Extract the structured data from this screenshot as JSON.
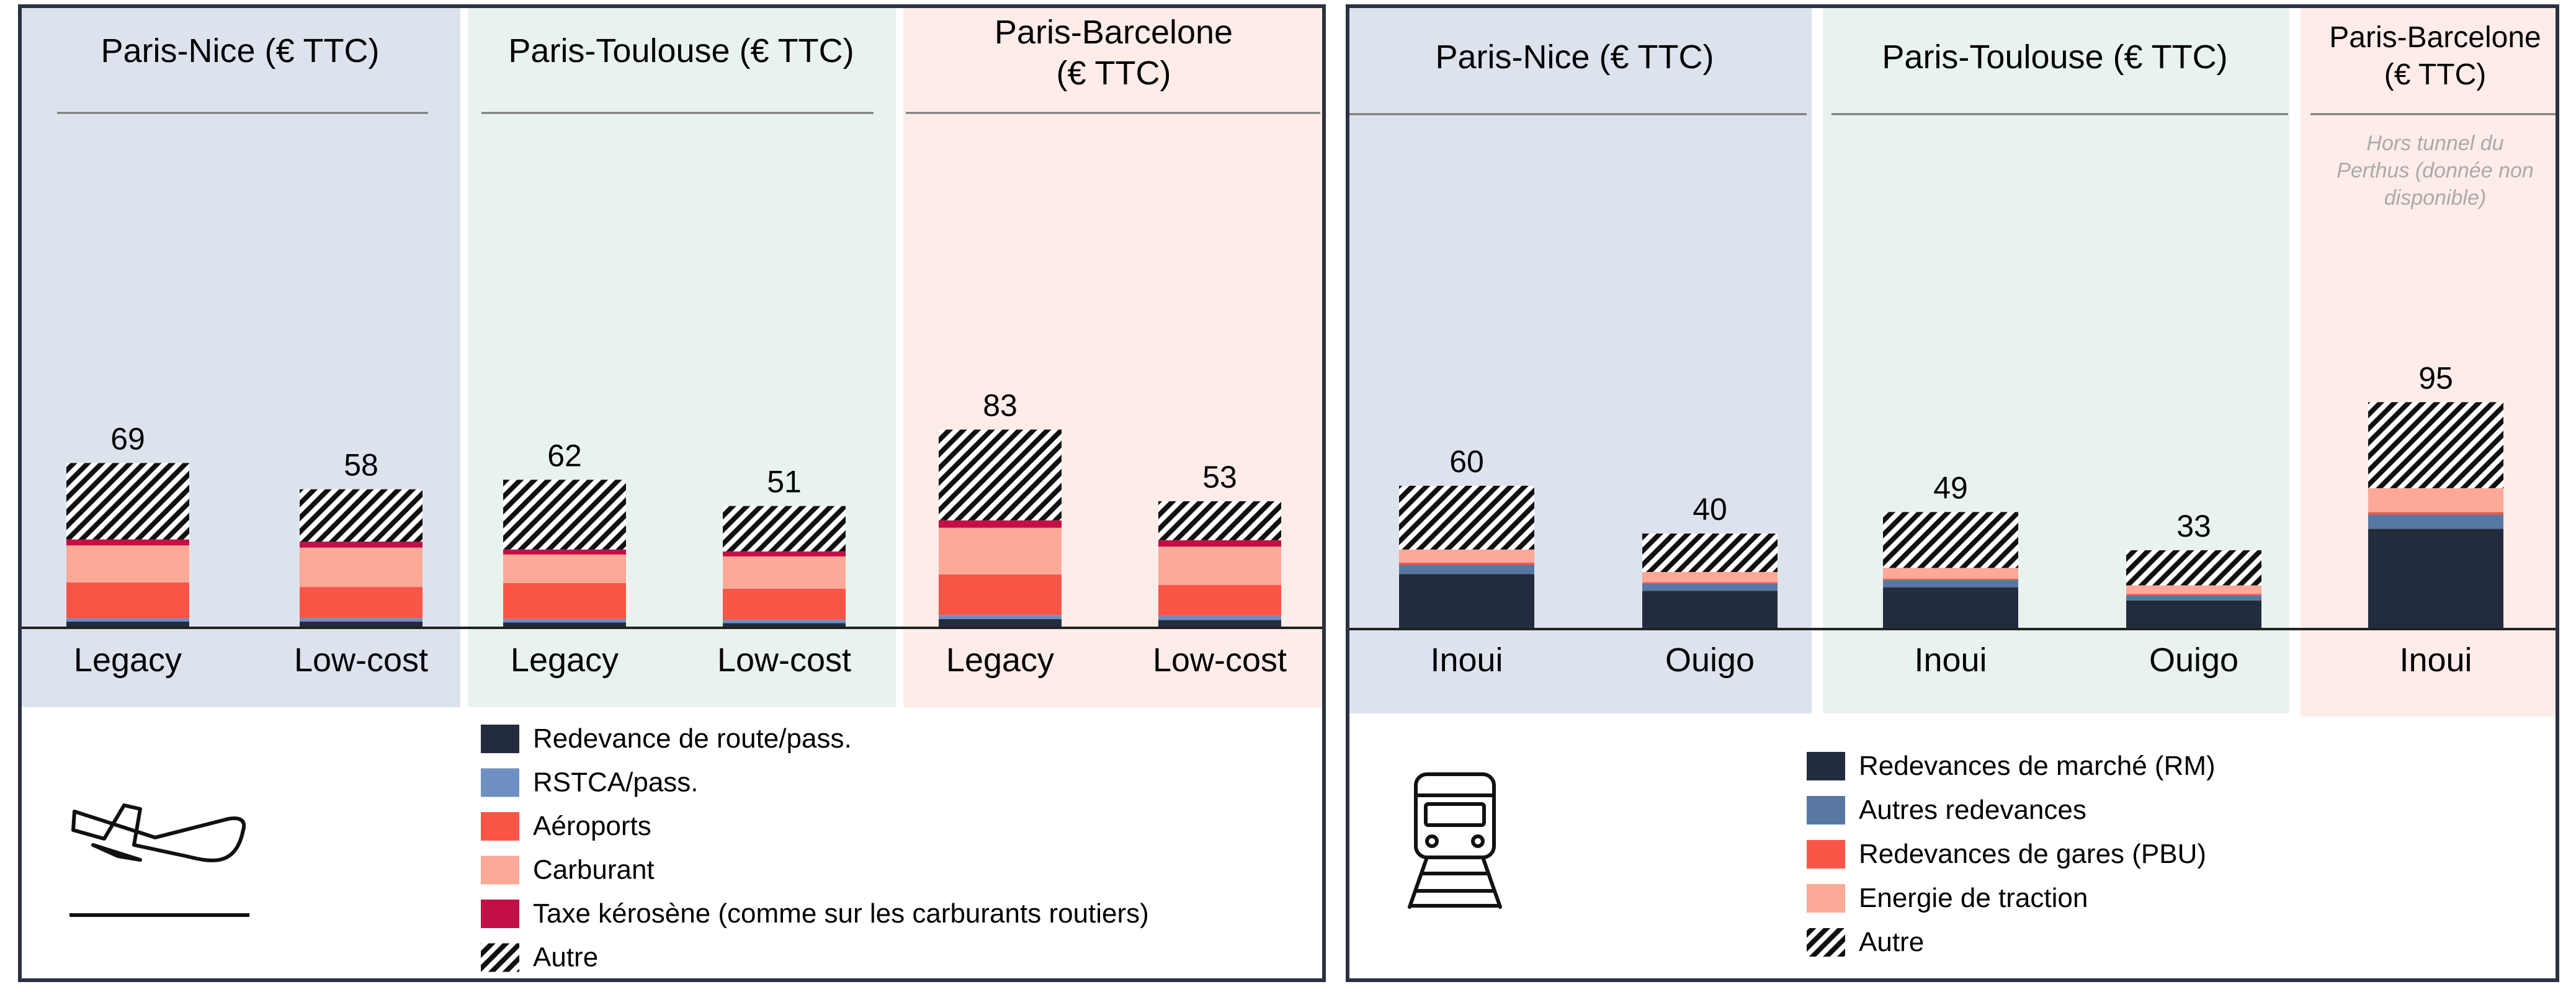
{
  "colors": {
    "redevance_route": "#232c3e",
    "rstca": "#6e8fc2",
    "aeroports": "#fb5548",
    "carburant": "#fda998",
    "taxe_kerosene": "#c30f46",
    "rm": "#232c3e",
    "autres_redevances": "#5878a3",
    "pbu": "#fb5548",
    "energie": "#fda998",
    "bg_blue": "#dde3ec",
    "bg_green": "#e8f3ee",
    "bg_pink": "#fdece8",
    "frame": "#2a3140"
  },
  "chart_data": [
    {
      "type": "bar",
      "stacked": true,
      "mode": "avion",
      "groups": [
        "Paris-Nice (€ TTC)",
        "Paris-Toulouse (€ TTC)",
        "Paris-Barcelone (€ TTC)"
      ],
      "categories": [
        "Legacy",
        "Low-cost",
        "Legacy",
        "Low-cost",
        "Legacy",
        "Low-cost"
      ],
      "totals": [
        "69",
        "58",
        "62",
        "51",
        "83",
        "53"
      ],
      "series": [
        {
          "name": "Redevance de route/pass.",
          "values": [
            2.6,
            2.6,
            2.3,
            2.0,
            3.7,
            3.3
          ]
        },
        {
          "name": "RSTCA/pass.",
          "values": [
            1.4,
            1.5,
            1.4,
            1.4,
            1.7,
            1.7
          ]
        },
        {
          "name": "Aéroports",
          "values": [
            15,
            13,
            15,
            13,
            17,
            13
          ]
        },
        {
          "name": "Carburant",
          "values": [
            15.5,
            16.5,
            12,
            13.5,
            19.5,
            16
          ]
        },
        {
          "name": "Taxe kérosène (comme sur les carburants routiers)",
          "values": [
            2.5,
            2.5,
            2.1,
            2.1,
            3.1,
            2.7
          ]
        },
        {
          "name": "Autre",
          "values": [
            32,
            21.9,
            29.2,
            19,
            38,
            16.3
          ]
        }
      ]
    },
    {
      "type": "bar",
      "stacked": true,
      "mode": "train",
      "groups": [
        "Paris-Nice (€ TTC)",
        "Paris-Toulouse (€ TTC)",
        "Paris-Barcelone (€ TTC)"
      ],
      "categories": [
        "Inoui",
        "Ouigo",
        "Inoui",
        "Ouigo",
        "Inoui"
      ],
      "totals": [
        "60",
        "40",
        "49",
        "33",
        "95"
      ],
      "note": "Hors tunnel du Perthus (donnée non disponible)",
      "series": [
        {
          "name": "Redevances de marché (RM)",
          "values": [
            23,
            16,
            17.5,
            12,
            42
          ]
        },
        {
          "name": "Autres redevances",
          "values": [
            4,
            3,
            3,
            2.2,
            6
          ]
        },
        {
          "name": "Redevances de gares (PBU)",
          "values": [
            0.8,
            0.6,
            0.6,
            0.5,
            1
          ]
        },
        {
          "name": "Energie de traction",
          "values": [
            5.5,
            4.3,
            4.5,
            3.6,
            10
          ]
        },
        {
          "name": "Autre",
          "values": [
            26.7,
            16.1,
            23.4,
            14.7,
            36
          ]
        }
      ]
    }
  ]
}
